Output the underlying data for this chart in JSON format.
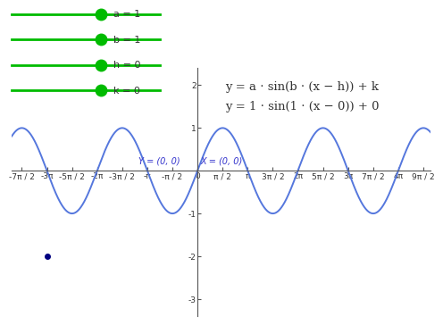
{
  "formula_general": "y = a · sin(b · (x − h)) + k",
  "formula_specific": "y = 1 · sin(1 · (x − 0)) + 0",
  "sine_color": "#5577dd",
  "sine_linewidth": 1.4,
  "xlim_pi_units": [
    -3.7,
    4.65
  ],
  "ylim": [
    -3.4,
    2.4
  ],
  "xticks_pi": [
    -3.5,
    -3,
    -2.5,
    -2,
    -1.5,
    -1,
    -0.5,
    0,
    0.5,
    1,
    1.5,
    2,
    2.5,
    3,
    3.5,
    4,
    4.5
  ],
  "xtick_labels": [
    "-7π / 2",
    "-3π",
    "-5π / 2",
    "-2π",
    "-3π / 2",
    "-π",
    "-π / 2",
    "0",
    "π / 2",
    "π",
    "3π / 2",
    "2π",
    "5π / 2",
    "3π",
    "7π / 2",
    "4π",
    "9π / 2"
  ],
  "yticks": [
    -3,
    -2,
    -1,
    1,
    2
  ],
  "slider_dot_color": "#00bb00",
  "slider_line_color": "#00bb00",
  "sliders": [
    {
      "label": "a = 1"
    },
    {
      "label": "b = 1"
    },
    {
      "label": "h = 0"
    },
    {
      "label": "k = 0"
    }
  ],
  "label_Y": "Y = (0, 0)",
  "label_X": "X = (0, 0)",
  "dot_x_pi": -3.0,
  "dot_y": -2.0,
  "dot_color": "#000080",
  "axis_color": "#555555",
  "tick_fontsize": 6.5,
  "formula_fontsize": 9.5
}
